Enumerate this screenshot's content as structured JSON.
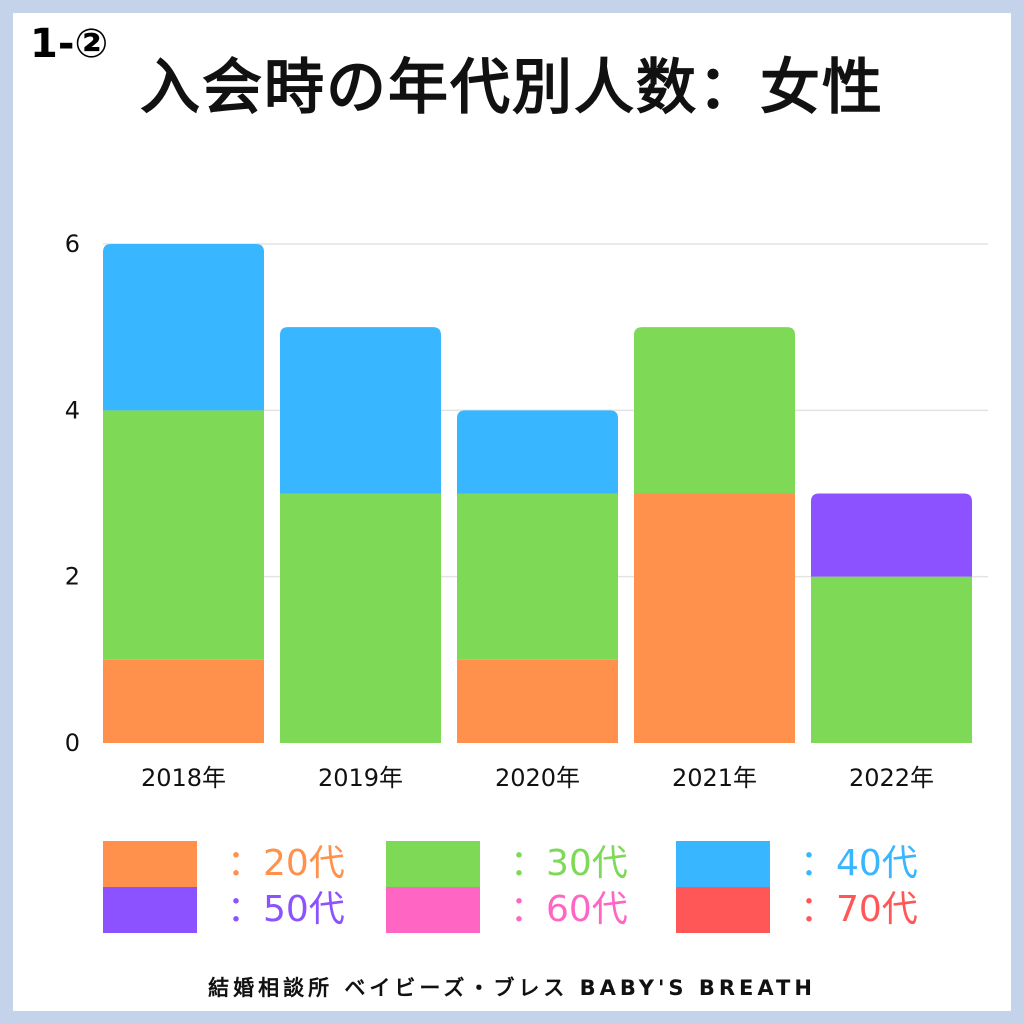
{
  "chart_number": "1-②",
  "chart_data": {
    "type": "bar",
    "stacked": true,
    "title": "入会時の年代別人数：女性",
    "categories": [
      "2018年",
      "2019年",
      "2020年",
      "2021年",
      "2022年"
    ],
    "ylim": [
      0,
      6
    ],
    "yticks": [
      "0",
      "2",
      "4",
      "6"
    ],
    "grid": true,
    "legend_position": "bottom",
    "series": [
      {
        "name": "：20代",
        "color": "#ff914d",
        "values": [
          1,
          0,
          1,
          3,
          0
        ]
      },
      {
        "name": "：30代",
        "color": "#7ed957",
        "values": [
          3,
          3,
          2,
          2,
          2
        ]
      },
      {
        "name": "：40代",
        "color": "#38b6ff",
        "values": [
          2,
          2,
          1,
          0,
          0
        ]
      },
      {
        "name": "：50代",
        "color": "#8c52ff",
        "values": [
          0,
          0,
          0,
          0,
          1
        ]
      },
      {
        "name": "：60代",
        "color": "#ff66c4",
        "values": [
          0,
          0,
          0,
          0,
          0
        ]
      },
      {
        "name": "：70代",
        "color": "#ff5757",
        "values": [
          0,
          0,
          0,
          0,
          0
        ]
      }
    ]
  },
  "footer": "結婚相談所 ベイビーズ・ブレス BABY'S BREATH",
  "colors": {
    "frame_border": "#c5d3ea",
    "gridline": "#e3e3e3"
  }
}
